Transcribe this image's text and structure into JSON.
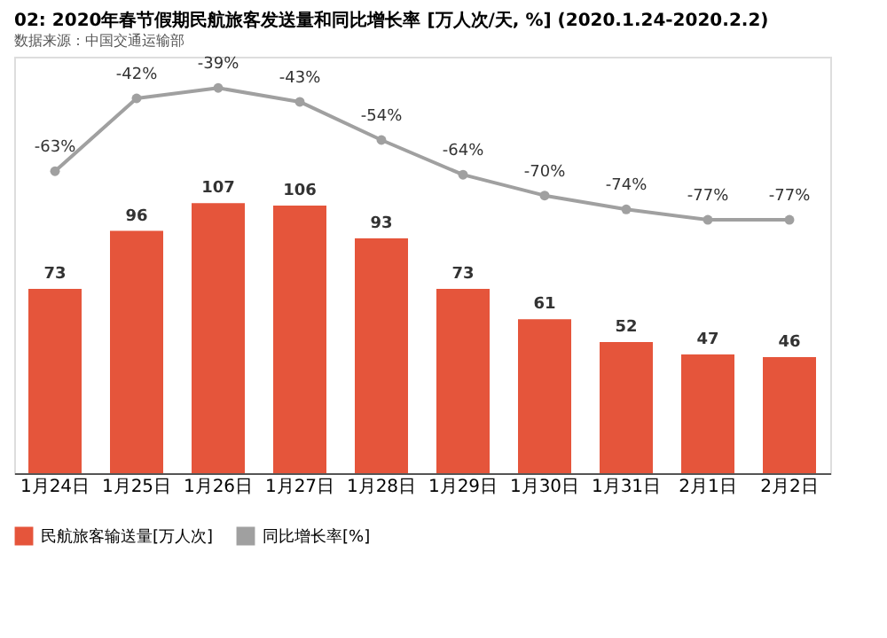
{
  "chart_data": {
    "type": "bar",
    "title": "02: 2020年春节假期民航旅客发送量和同比增长率 [万人次/天, %] (2020.1.24-2020.2.2)",
    "categories": [
      "1月24日",
      "1月25日",
      "1月26日",
      "1月27日",
      "1月28日",
      "1月29日",
      "1月30日",
      "1月31日",
      "2月1日",
      "2月2日"
    ],
    "series": [
      {
        "name": "民航旅客输送量[万人次]",
        "color": "#e5553b",
        "values": [
          73,
          96,
          107,
          106,
          93,
          73,
          61,
          52,
          47,
          46
        ]
      },
      {
        "name": "同比增长率[%]",
        "type": "line",
        "axis": "y2",
        "color": "#a0a0a0",
        "values": [
          -63,
          -42,
          -39,
          -43,
          -54,
          -64,
          -70,
          -74,
          -77,
          -77
        ],
        "value_labels": [
          "-63%",
          "-42%",
          "-39%",
          "-43%",
          "-54%",
          "-64%",
          "-70%",
          "-74%",
          "-77%",
          "-77%"
        ]
      }
    ],
    "ylim": [
      0,
      165
    ],
    "y2lim": [
      -150,
      -30
    ],
    "tick_labels": "x",
    "data_labels": true,
    "grid": false,
    "legend": "bottom left",
    "marker": "circle",
    "annotations": [
      "数据来源：中国交通运输部"
    ]
  }
}
